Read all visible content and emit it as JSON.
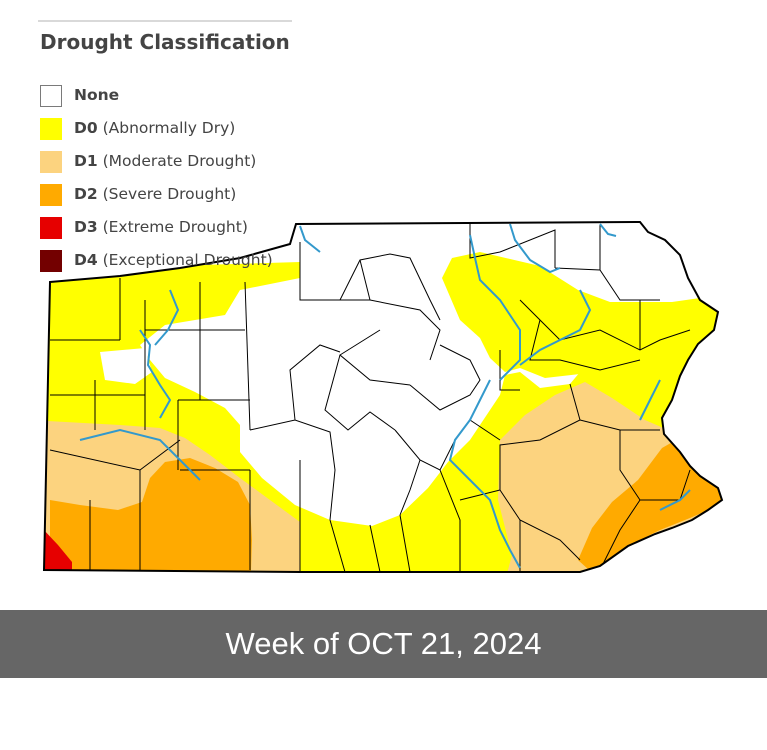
{
  "legend": {
    "title": "Drought Classification",
    "items": [
      {
        "code": "",
        "label": "None",
        "color": "#ffffff",
        "border": "#7a7a7a"
      },
      {
        "code": "D0",
        "label": "(Abnormally Dry)",
        "color": "#ffff00",
        "border": "#ffff00"
      },
      {
        "code": "D1",
        "label": "(Moderate Drought)",
        "color": "#fcd37f",
        "border": "#fcd37f"
      },
      {
        "code": "D2",
        "label": "(Severe Drought)",
        "color": "#ffaa00",
        "border": "#ffaa00"
      },
      {
        "code": "D3",
        "label": "(Extreme Drought)",
        "color": "#e60000",
        "border": "#e60000"
      },
      {
        "code": "D4",
        "label": "(Exceptional Drought)",
        "color": "#730000",
        "border": "#730000"
      }
    ]
  },
  "footer": {
    "week_label": "Week of OCT 21, 2024",
    "band_color": "#666666"
  },
  "map": {
    "background": "#ffffff",
    "border_color": "#000000",
    "river_color": "#3399cc"
  }
}
